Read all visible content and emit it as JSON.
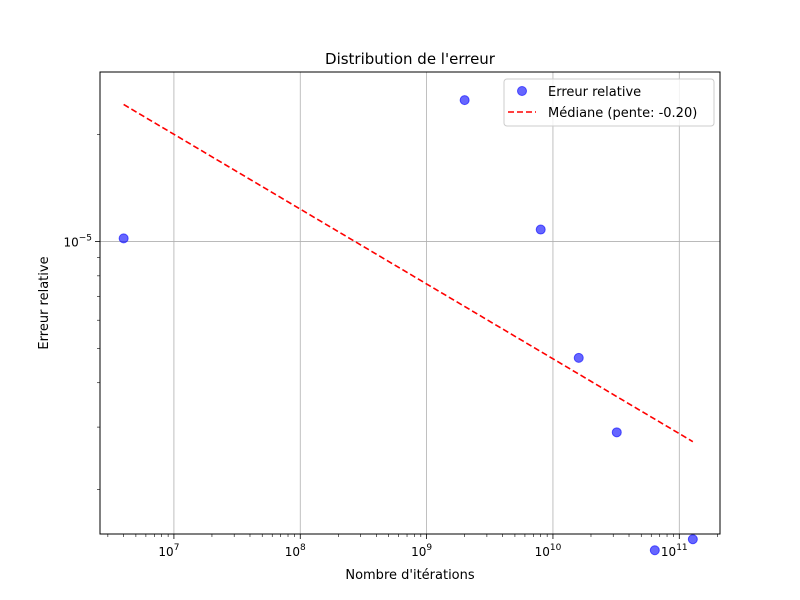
{
  "chart_data": {
    "type": "scatter",
    "title": "Distribution de l'erreur",
    "xlabel": "Nombre d'itérations",
    "ylabel": "Erreur relative",
    "xscale": "log",
    "yscale": "log",
    "xlim": [
      2600000.0,
      210000000000.0
    ],
    "ylim": [
      1.5e-06,
      3e-05
    ],
    "grid": true,
    "legend_position": "top-right",
    "xticks": [
      {
        "value": 10000000.0,
        "base": "10",
        "exp": "7"
      },
      {
        "value": 100000000.0,
        "base": "10",
        "exp": "8"
      },
      {
        "value": 1000000000.0,
        "base": "10",
        "exp": "9"
      },
      {
        "value": 10000000000.0,
        "base": "10",
        "exp": "10"
      },
      {
        "value": 100000000000.0,
        "base": "10",
        "exp": "11"
      }
    ],
    "yticks": [
      {
        "value": 1e-05,
        "base": "10",
        "exp": "−5"
      }
    ],
    "x_minor_ticks": [
      3000000.0,
      4000000.0,
      5000000.0,
      6000000.0,
      7000000.0,
      8000000.0,
      9000000.0,
      20000000.0,
      30000000.0,
      40000000.0,
      50000000.0,
      60000000.0,
      70000000.0,
      80000000.0,
      90000000.0,
      200000000.0,
      300000000.0,
      400000000.0,
      500000000.0,
      600000000.0,
      700000000.0,
      800000000.0,
      900000000.0,
      2000000000.0,
      3000000000.0,
      4000000000.0,
      5000000000.0,
      6000000000.0,
      7000000000.0,
      8000000000.0,
      9000000000.0,
      20000000000.0,
      30000000000.0,
      40000000000.0,
      50000000000.0,
      60000000000.0,
      70000000000.0,
      80000000000.0,
      90000000000.0,
      200000000000.0
    ],
    "y_minor_ticks": [
      2e-06,
      3e-06,
      4e-06,
      5e-06,
      6e-06,
      7e-06,
      8e-06,
      9e-06,
      2e-05
    ],
    "series": [
      {
        "name": "Erreur relative",
        "kind": "scatter",
        "color": "#0000ff",
        "points": [
          {
            "x": 4000000.0,
            "y": 1.02e-05
          },
          {
            "x": 2000000000.0,
            "y": 2.5e-05
          },
          {
            "x": 8000000000.0,
            "y": 1.08e-05
          },
          {
            "x": 16000000000.0,
            "y": 4.7e-06
          },
          {
            "x": 32000000000.0,
            "y": 2.9e-06
          },
          {
            "x": 64000000000.0,
            "y": 1.35e-06
          },
          {
            "x": 128000000000.0,
            "y": 1.45e-06
          }
        ]
      },
      {
        "name": "Médiane (pente: -0.20)",
        "kind": "line",
        "color": "#ff0000",
        "dash": "dashed",
        "points": [
          {
            "x": 4000000.0,
            "y": 2.43e-05
          },
          {
            "x": 128000000000.0,
            "y": 2.73e-06
          }
        ]
      }
    ]
  }
}
